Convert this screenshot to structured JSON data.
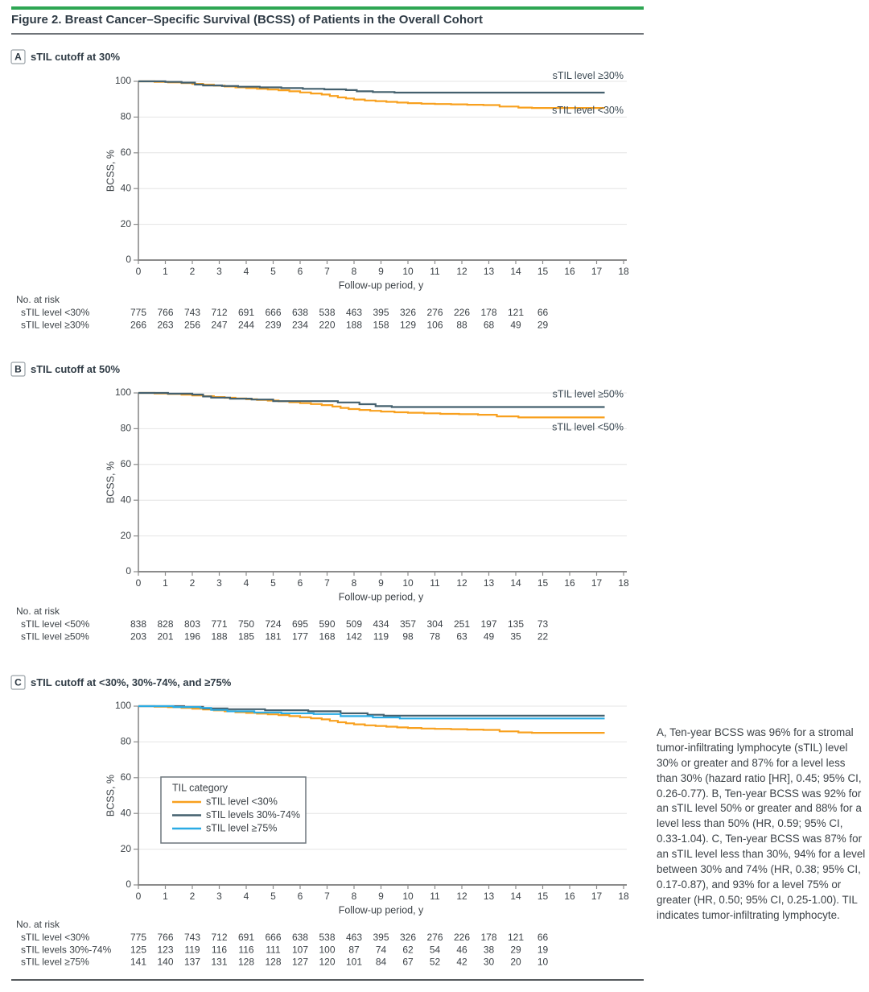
{
  "page": {
    "title": "Figure 2. Breast Cancer–Specific Survival (BCSS) of Patients in the Overall Cohort",
    "caption": "A, Ten-year BCSS was 96% for a stromal tumor-infiltrating lymphocyte (sTIL) level 30% or greater and 87% for a level less than 30% (hazard ratio [HR], 0.45; 95% CI, 0.26-0.77). B, Ten-year BCSS was 92% for an sTIL level 50% or greater and 88% for a level less than 50% (HR, 0.59; 95% CI, 0.33-1.04). C, Ten-year BCSS was 87% for an sTIL level less than 30%, 94% for a level between 30% and 74% (HR, 0.38; 95% CI, 0.17-0.87), and 93% for a level 75% or greater (HR, 0.50; 95% CI, 0.25-1.00). TIL indicates tumor-infiltrating lymphocyte."
  },
  "colors": {
    "accent_green": "#2ea653",
    "orange": "#f8a01e",
    "slate": "#44606e",
    "blue": "#2aabe4",
    "grid": "#e4e4e4",
    "axis": "#8b8b8b",
    "text": "#3c4247",
    "title": "#2f3b45",
    "label": "#3c4a54",
    "rule_light": "#6f7479",
    "rule_dark": "#55595d"
  },
  "chart_data": [
    {
      "type": "line",
      "subtype": "kaplan-meier-step",
      "panel_letter": "A",
      "panel_title": "sTIL cutoff at 30%",
      "xlabel": "Follow-up period, y",
      "ylabel": "BCSS, %",
      "xlim": [
        0,
        18
      ],
      "ylim": [
        0,
        100
      ],
      "xticks": [
        0,
        1,
        2,
        3,
        4,
        5,
        6,
        7,
        8,
        9,
        10,
        11,
        12,
        13,
        14,
        15,
        16,
        17,
        18
      ],
      "yticks": [
        0,
        20,
        40,
        60,
        80,
        100
      ],
      "grid": "horizontal",
      "legend_position": "none",
      "x_end": 17.3,
      "series": [
        {
          "name": "sTIL level <30%",
          "color": "orange",
          "points": [
            [
              0,
              100
            ],
            [
              0.6,
              99.7
            ],
            [
              1.1,
              99.4
            ],
            [
              1.6,
              99.0
            ],
            [
              2.0,
              98.6
            ],
            [
              2.4,
              98.1
            ],
            [
              2.8,
              97.6
            ],
            [
              3.2,
              97.1
            ],
            [
              3.6,
              96.6
            ],
            [
              4.0,
              96.2
            ],
            [
              4.4,
              95.8
            ],
            [
              4.8,
              95.4
            ],
            [
              5.2,
              95.0
            ],
            [
              5.6,
              94.4
            ],
            [
              6.0,
              93.8
            ],
            [
              6.4,
              93.2
            ],
            [
              6.8,
              92.6
            ],
            [
              7.1,
              91.8
            ],
            [
              7.4,
              91.0
            ],
            [
              7.7,
              90.4
            ],
            [
              8.0,
              89.8
            ],
            [
              8.4,
              89.3
            ],
            [
              8.8,
              88.9
            ],
            [
              9.2,
              88.5
            ],
            [
              9.6,
              88.1
            ],
            [
              10.0,
              87.8
            ],
            [
              10.5,
              87.5
            ],
            [
              11.0,
              87.3
            ],
            [
              11.6,
              87.1
            ],
            [
              12.2,
              86.9
            ],
            [
              12.8,
              86.7
            ],
            [
              13.4,
              85.9
            ],
            [
              14.1,
              85.3
            ],
            [
              14.6,
              85.1
            ]
          ]
        },
        {
          "name": "sTIL level ≥30%",
          "color": "slate",
          "points": [
            [
              0,
              100
            ],
            [
              1.0,
              99.7
            ],
            [
              1.6,
              99.3
            ],
            [
              2.1,
              98.2
            ],
            [
              2.4,
              97.7
            ],
            [
              3.1,
              97.4
            ],
            [
              3.7,
              97.0
            ],
            [
              4.5,
              96.6
            ],
            [
              5.3,
              96.2
            ],
            [
              6.1,
              95.8
            ],
            [
              6.9,
              95.5
            ],
            [
              7.7,
              95.1
            ],
            [
              8.1,
              94.4
            ],
            [
              8.7,
              94.0
            ],
            [
              9.5,
              93.7
            ]
          ]
        }
      ],
      "end_labels": [
        {
          "text": "sTIL level ≥30%",
          "y_pct": 102.8
        },
        {
          "text": "sTIL level <30%",
          "y_pct": 83.5
        }
      ],
      "legend": null,
      "risk_table": {
        "title": "No. at risk",
        "timepoints": [
          0,
          1,
          2,
          3,
          4,
          5,
          6,
          7,
          8,
          9,
          10,
          11,
          12,
          13,
          14,
          15
        ],
        "rows": [
          {
            "label": "sTIL level <30%",
            "values": [
              775,
              766,
              743,
              712,
              691,
              666,
              638,
              538,
              463,
              395,
              326,
              276,
              226,
              178,
              121,
              66
            ]
          },
          {
            "label": "sTIL level ≥30%",
            "values": [
              266,
              263,
              256,
              247,
              244,
              239,
              234,
              220,
              188,
              158,
              129,
              106,
              88,
              68,
              49,
              29
            ]
          }
        ]
      }
    },
    {
      "type": "line",
      "subtype": "kaplan-meier-step",
      "panel_letter": "B",
      "panel_title": "sTIL cutoff at 50%",
      "xlabel": "Follow-up period, y",
      "ylabel": "BCSS, %",
      "xlim": [
        0,
        18
      ],
      "ylim": [
        0,
        100
      ],
      "xticks": [
        0,
        1,
        2,
        3,
        4,
        5,
        6,
        7,
        8,
        9,
        10,
        11,
        12,
        13,
        14,
        15,
        16,
        17,
        18
      ],
      "yticks": [
        0,
        20,
        40,
        60,
        80,
        100
      ],
      "grid": "horizontal",
      "legend_position": "none",
      "x_end": 17.3,
      "series": [
        {
          "name": "sTIL level <50%",
          "color": "orange",
          "points": [
            [
              0,
              100
            ],
            [
              0.6,
              99.7
            ],
            [
              1.1,
              99.4
            ],
            [
              1.6,
              99.0
            ],
            [
              2.0,
              98.6
            ],
            [
              2.4,
              98.2
            ],
            [
              2.8,
              97.7
            ],
            [
              3.2,
              97.3
            ],
            [
              3.6,
              96.9
            ],
            [
              4.0,
              96.5
            ],
            [
              4.4,
              96.1
            ],
            [
              4.8,
              95.7
            ],
            [
              5.2,
              95.3
            ],
            [
              5.6,
              94.8
            ],
            [
              6.0,
              94.3
            ],
            [
              6.4,
              93.8
            ],
            [
              6.8,
              93.2
            ],
            [
              7.2,
              92.4
            ],
            [
              7.5,
              91.6
            ],
            [
              7.8,
              91.0
            ],
            [
              8.2,
              90.5
            ],
            [
              8.6,
              90.0
            ],
            [
              9.0,
              89.6
            ],
            [
              9.5,
              89.2
            ],
            [
              10.0,
              88.9
            ],
            [
              10.6,
              88.6
            ],
            [
              11.2,
              88.3
            ],
            [
              11.9,
              88.1
            ],
            [
              12.6,
              87.8
            ],
            [
              13.3,
              86.9
            ],
            [
              14.1,
              86.3
            ]
          ]
        },
        {
          "name": "sTIL level ≥50%",
          "color": "slate",
          "points": [
            [
              0,
              100
            ],
            [
              1.1,
              99.6
            ],
            [
              2.0,
              99.1
            ],
            [
              2.4,
              98.0
            ],
            [
              2.7,
              97.4
            ],
            [
              3.4,
              96.8
            ],
            [
              4.2,
              96.3
            ],
            [
              5.0,
              95.4
            ],
            [
              7.4,
              94.7
            ],
            [
              8.2,
              93.7
            ],
            [
              8.8,
              92.6
            ],
            [
              9.4,
              92.1
            ]
          ]
        }
      ],
      "end_labels": [
        {
          "text": "sTIL level ≥50%",
          "y_pct": 99.0
        },
        {
          "text": "sTIL level <50%",
          "y_pct": 80.5
        }
      ],
      "legend": null,
      "risk_table": {
        "title": "No. at risk",
        "timepoints": [
          0,
          1,
          2,
          3,
          4,
          5,
          6,
          7,
          8,
          9,
          10,
          11,
          12,
          13,
          14,
          15
        ],
        "rows": [
          {
            "label": "sTIL level <50%",
            "values": [
              838,
              828,
              803,
              771,
              750,
              724,
              695,
              590,
              509,
              434,
              357,
              304,
              251,
              197,
              135,
              73
            ]
          },
          {
            "label": "sTIL level ≥50%",
            "values": [
              203,
              201,
              196,
              188,
              185,
              181,
              177,
              168,
              142,
              119,
              98,
              78,
              63,
              49,
              35,
              22
            ]
          }
        ]
      }
    },
    {
      "type": "line",
      "subtype": "kaplan-meier-step",
      "panel_letter": "C",
      "panel_title": "sTIL cutoff at <30%, 30%-74%, and ≥75%",
      "xlabel": "Follow-up period, y",
      "ylabel": "BCSS, %",
      "xlim": [
        0,
        18
      ],
      "ylim": [
        0,
        100
      ],
      "xticks": [
        0,
        1,
        2,
        3,
        4,
        5,
        6,
        7,
        8,
        9,
        10,
        11,
        12,
        13,
        14,
        15,
        16,
        17,
        18
      ],
      "yticks": [
        0,
        20,
        40,
        60,
        80,
        100
      ],
      "grid": "horizontal",
      "legend_position": "inside-left",
      "x_end": 17.3,
      "series": [
        {
          "name": "sTIL level <30%",
          "color": "orange",
          "points": [
            [
              0,
              100
            ],
            [
              0.6,
              99.7
            ],
            [
              1.1,
              99.4
            ],
            [
              1.6,
              99.0
            ],
            [
              2.0,
              98.6
            ],
            [
              2.4,
              98.1
            ],
            [
              2.8,
              97.6
            ],
            [
              3.2,
              97.1
            ],
            [
              3.6,
              96.6
            ],
            [
              4.0,
              96.2
            ],
            [
              4.4,
              95.8
            ],
            [
              4.8,
              95.4
            ],
            [
              5.2,
              95.0
            ],
            [
              5.6,
              94.4
            ],
            [
              6.0,
              93.8
            ],
            [
              6.4,
              93.2
            ],
            [
              6.8,
              92.6
            ],
            [
              7.1,
              91.8
            ],
            [
              7.4,
              91.0
            ],
            [
              7.7,
              90.4
            ],
            [
              8.0,
              89.8
            ],
            [
              8.4,
              89.3
            ],
            [
              8.8,
              88.9
            ],
            [
              9.2,
              88.5
            ],
            [
              9.6,
              88.1
            ],
            [
              10.0,
              87.8
            ],
            [
              10.5,
              87.5
            ],
            [
              11.0,
              87.3
            ],
            [
              11.6,
              87.1
            ],
            [
              12.2,
              86.9
            ],
            [
              12.8,
              86.7
            ],
            [
              13.4,
              85.9
            ],
            [
              14.1,
              85.3
            ],
            [
              14.6,
              85.1
            ]
          ]
        },
        {
          "name": "sTIL levels 30%-74%",
          "color": "slate",
          "points": [
            [
              0,
              100
            ],
            [
              1.7,
              99.6
            ],
            [
              2.4,
              98.7
            ],
            [
              3.3,
              98.3
            ],
            [
              4.7,
              97.7
            ],
            [
              6.3,
              97.1
            ],
            [
              7.5,
              96.0
            ],
            [
              8.5,
              95.2
            ],
            [
              9.1,
              94.7
            ]
          ]
        },
        {
          "name": "sTIL level ≥75%",
          "color": "blue",
          "points": [
            [
              0,
              100
            ],
            [
              1.3,
              99.5
            ],
            [
              2.3,
              99.0
            ],
            [
              2.7,
              97.9
            ],
            [
              3.3,
              97.1
            ],
            [
              4.3,
              96.5
            ],
            [
              5.3,
              96.0
            ],
            [
              6.5,
              95.6
            ],
            [
              7.5,
              94.4
            ],
            [
              8.7,
              93.7
            ],
            [
              9.7,
              93.1
            ]
          ]
        }
      ],
      "end_labels": [],
      "legend": {
        "title": "TIL category",
        "entries": [
          {
            "label": "sTIL level <30%",
            "color": "orange"
          },
          {
            "label": "sTIL levels 30%-74%",
            "color": "slate"
          },
          {
            "label": "sTIL level ≥75%",
            "color": "blue"
          }
        ]
      },
      "risk_table": {
        "title": "No. at risk",
        "timepoints": [
          0,
          1,
          2,
          3,
          4,
          5,
          6,
          7,
          8,
          9,
          10,
          11,
          12,
          13,
          14,
          15
        ],
        "rows": [
          {
            "label": "sTIL level <30%",
            "values": [
              775,
              766,
              743,
              712,
              691,
              666,
              638,
              538,
              463,
              395,
              326,
              276,
              226,
              178,
              121,
              66
            ]
          },
          {
            "label": "sTIL levels 30%-74%",
            "values": [
              125,
              123,
              119,
              116,
              116,
              111,
              107,
              100,
              87,
              74,
              62,
              54,
              46,
              38,
              29,
              19
            ]
          },
          {
            "label": "sTIL level ≥75%",
            "values": [
              141,
              140,
              137,
              131,
              128,
              128,
              127,
              120,
              101,
              84,
              67,
              52,
              42,
              30,
              20,
              10
            ]
          }
        ]
      }
    }
  ]
}
